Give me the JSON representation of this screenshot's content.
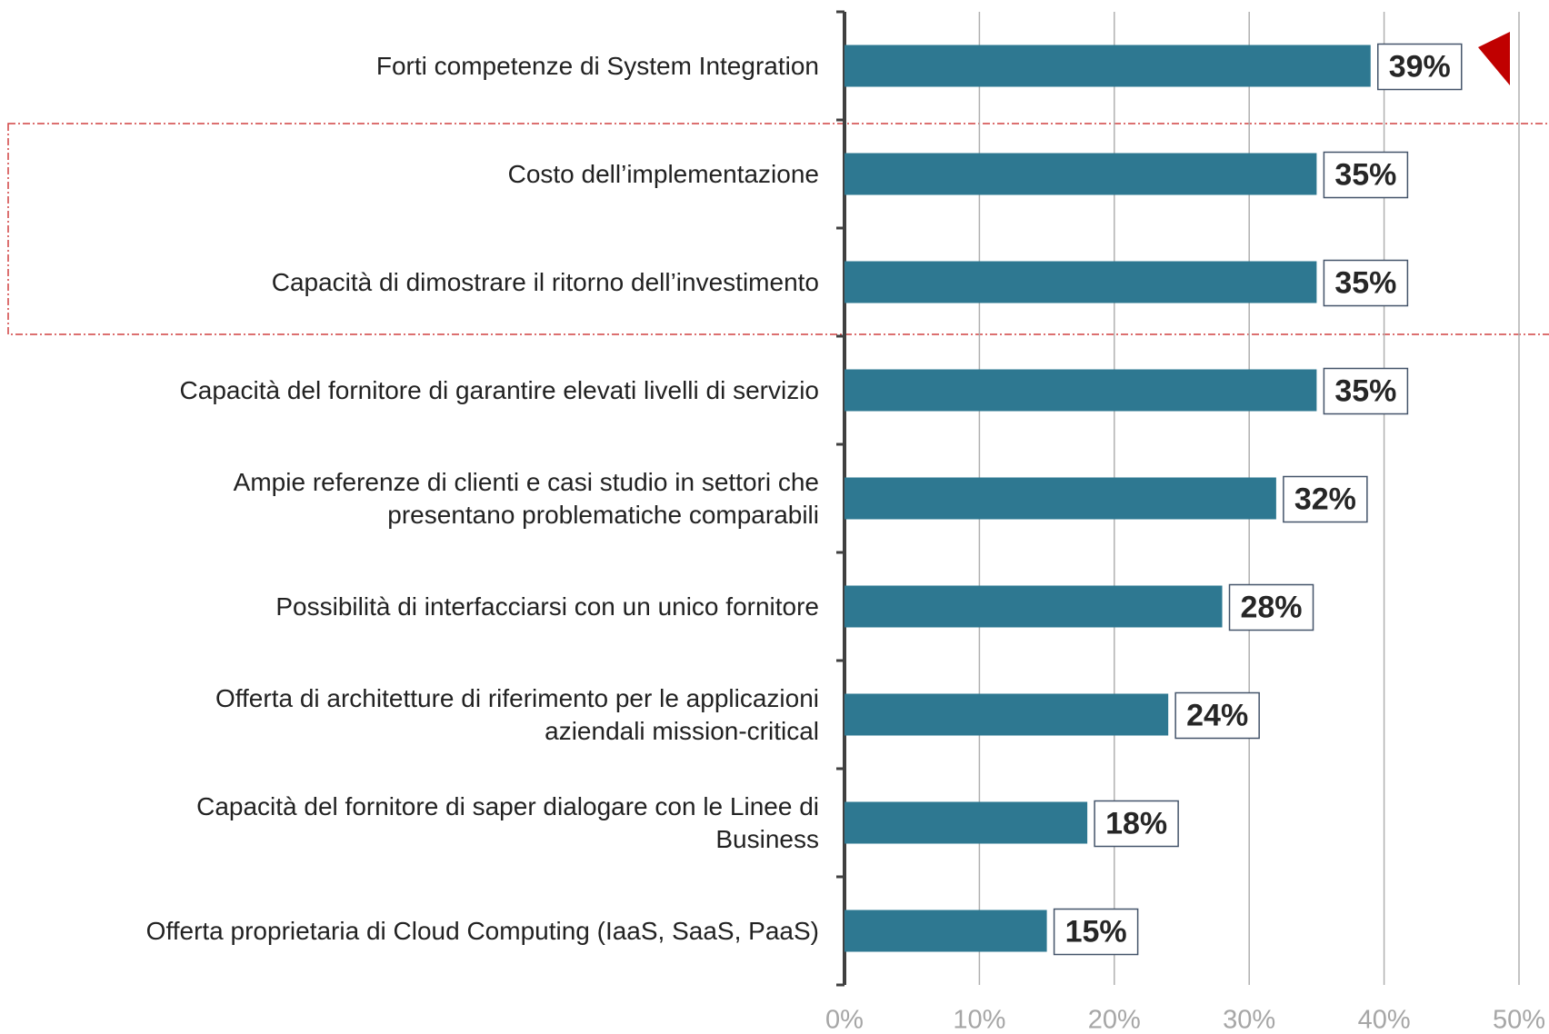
{
  "chart_data": {
    "type": "bar",
    "orientation": "horizontal",
    "categories": [
      "Forti competenze di System Integration",
      "Costo dell’implementazione",
      "Capacità di dimostrare il ritorno dell’investimento",
      "Capacità del fornitore di garantire elevati livelli di servizio",
      "Ampie referenze di clienti e casi studio in settori che\npresentano problematiche comparabili",
      "Possibilità di interfacciarsi con un unico fornitore",
      "Offerta di architetture di riferimento per le applicazioni\naziendali mission-critical",
      "Capacità del fornitore di saper dialogare con le Linee di\nBusiness",
      "Offerta proprietaria di Cloud Computing (IaaS, SaaS, PaaS)"
    ],
    "values": [
      39,
      35,
      35,
      35,
      32,
      28,
      24,
      18,
      15
    ],
    "value_labels": [
      "39%",
      "35%",
      "35%",
      "35%",
      "32%",
      "28%",
      "24%",
      "18%",
      "15%"
    ],
    "color": "#2e7891",
    "xlim": [
      0,
      50
    ],
    "xticks": [
      {
        "value": 0,
        "label": "0%"
      },
      {
        "value": 10,
        "label": "10%"
      },
      {
        "value": 20,
        "label": "20%"
      },
      {
        "value": 30,
        "label": "30%"
      },
      {
        "value": 40,
        "label": "40%"
      },
      {
        "value": 50,
        "label": "50%"
      }
    ],
    "grid": true
  }
}
